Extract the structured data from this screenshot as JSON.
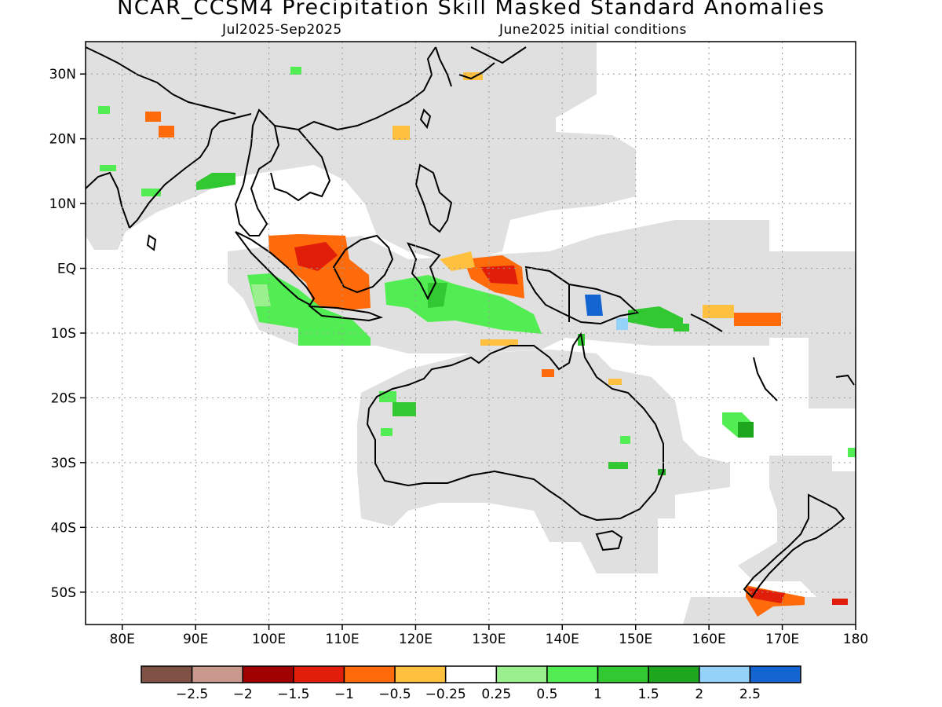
{
  "title": "NCAR_CCSM4 Precipitation Skill Masked Standard Anomalies",
  "subtitle_left": "Jul2025-Sep2025",
  "subtitle_right": "June2025 initial conditions",
  "map_extent": {
    "lon": [
      75,
      180
    ],
    "lat": [
      -55,
      35
    ]
  },
  "lat_ticks": [
    {
      "value": 30,
      "label": "30N"
    },
    {
      "value": 20,
      "label": "20N"
    },
    {
      "value": 10,
      "label": "10N"
    },
    {
      "value": 0,
      "label": "EQ"
    },
    {
      "value": -10,
      "label": "10S"
    },
    {
      "value": -20,
      "label": "20S"
    },
    {
      "value": -30,
      "label": "30S"
    },
    {
      "value": -40,
      "label": "40S"
    },
    {
      "value": -50,
      "label": "50S"
    }
  ],
  "lon_ticks": [
    {
      "value": 80,
      "label": "80E"
    },
    {
      "value": 90,
      "label": "90E"
    },
    {
      "value": 100,
      "label": "100E"
    },
    {
      "value": 110,
      "label": "110E"
    },
    {
      "value": 120,
      "label": "120E"
    },
    {
      "value": 130,
      "label": "130E"
    },
    {
      "value": 140,
      "label": "140E"
    },
    {
      "value": 150,
      "label": "150E"
    },
    {
      "value": 160,
      "label": "160E"
    },
    {
      "value": 170,
      "label": "170E"
    },
    {
      "value": 180,
      "label": "180"
    }
  ],
  "colorbar": {
    "colors": [
      "#7f5245",
      "#c9998d",
      "#a00000",
      "#e01e0a",
      "#ff6a0a",
      "#ffc040",
      "#ffffff",
      "#99f08c",
      "#52ed52",
      "#32c832",
      "#1ea71e",
      "#95d2f9",
      "#1464d2"
    ],
    "labels": [
      "−2.5",
      "−2",
      "−1.5",
      "−1",
      "−0.5",
      "−0.25",
      "0.25",
      "0.5",
      "1",
      "1.5",
      "2",
      "2.5"
    ]
  },
  "mask_color": "#e0e0e0"
}
